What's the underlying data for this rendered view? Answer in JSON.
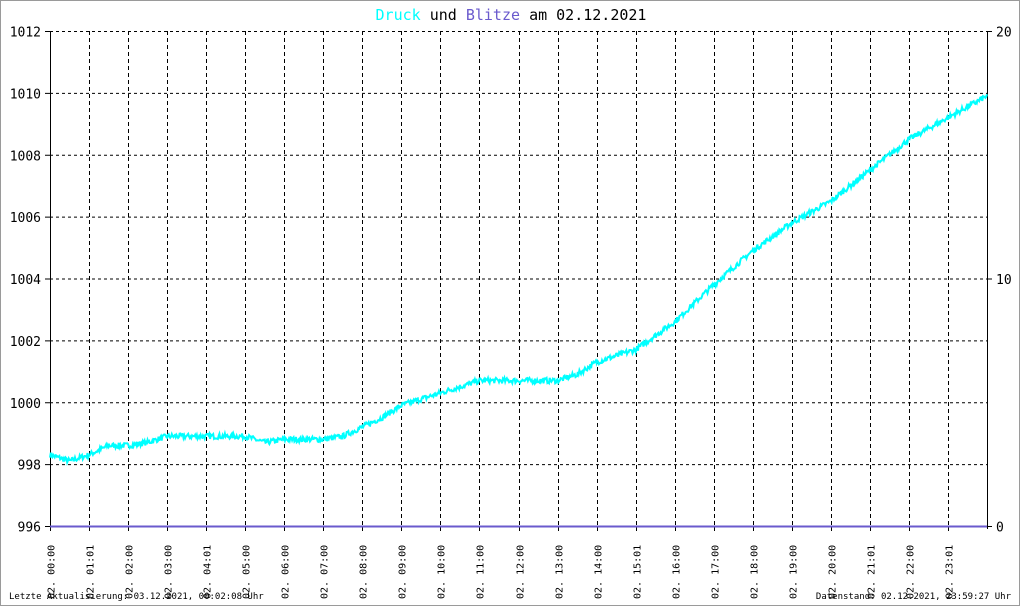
{
  "title": {
    "part1": "Druck",
    "part2": "und",
    "part3": "Blitze",
    "part4": "am 02.12.2021"
  },
  "colors": {
    "druck": "#00ffff",
    "blitze": "#6a5acd",
    "grid": "#000000"
  },
  "footer": {
    "left": "Letzte Aktualisierung: 03.12.2021, 00:02:08 Uhr",
    "right": "Datenstand: 02.12.2021, 23:59:27 Uhr"
  },
  "chart_data": {
    "type": "line",
    "title": "Druck und Blitze am 02.12.2021",
    "grid": true,
    "y_left": {
      "range": [
        996,
        1012
      ],
      "ticks": [
        "996",
        "998",
        "1000",
        "1002",
        "1004",
        "1006",
        "1008",
        "1010",
        "1012"
      ]
    },
    "y_right": {
      "range": [
        0,
        20
      ],
      "ticks": [
        "0",
        "10",
        "20"
      ]
    },
    "x_range_hours": [
      0,
      24
    ],
    "x_ticks": [
      "02. 00:00",
      "02. 01:01",
      "02. 02:00",
      "02. 03:00",
      "02. 04:01",
      "02. 05:00",
      "02. 06:00",
      "02. 07:00",
      "02. 08:00",
      "02. 09:00",
      "02. 10:00",
      "02. 11:00",
      "02. 12:00",
      "02. 13:00",
      "02. 14:00",
      "02. 15:01",
      "02. 16:00",
      "02. 17:00",
      "02. 18:00",
      "02. 19:00",
      "02. 20:00",
      "02. 21:01",
      "02. 22:00",
      "02. 23:01"
    ],
    "series": [
      {
        "name": "Druck",
        "axis": "left",
        "x": [
          0,
          0.5,
          1,
          1.5,
          2,
          2.5,
          3,
          4,
          5,
          5.5,
          6,
          7,
          7.5,
          8,
          8.5,
          9,
          10,
          11,
          12,
          13,
          13.5,
          14,
          15,
          16,
          17,
          18,
          19,
          20,
          21,
          22,
          23,
          24
        ],
        "y": [
          998.3,
          998.1,
          998.3,
          998.6,
          998.6,
          998.7,
          998.9,
          998.9,
          998.9,
          998.7,
          998.8,
          998.8,
          998.9,
          999.2,
          999.5,
          999.9,
          1000.3,
          1000.7,
          1000.7,
          1000.7,
          1000.9,
          1001.3,
          1001.7,
          1002.6,
          1003.8,
          1004.9,
          1005.8,
          1006.5,
          1007.5,
          1008.5,
          1009.2,
          1009.9
        ]
      },
      {
        "name": "Blitze",
        "axis": "right",
        "x": [
          0,
          24
        ],
        "y": [
          0,
          0
        ]
      }
    ]
  }
}
